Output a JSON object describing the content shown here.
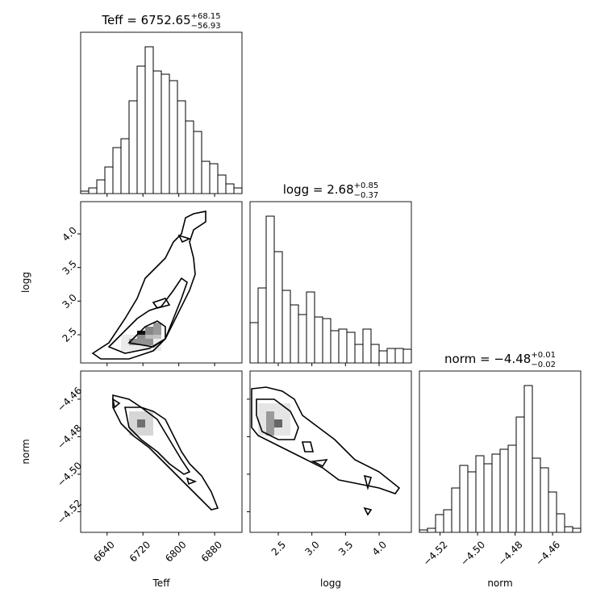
{
  "chart_data": {
    "type": "corner",
    "hist_ylim": [
      0,
      200
    ],
    "parameters": [
      {
        "name": "Teff",
        "title": "Teff = 6752.65",
        "upper": "+68.15",
        "lower": "−56.93",
        "xlim": [
          6581,
          6941
        ],
        "xticks": [
          6640,
          6720,
          6800,
          6880
        ],
        "bins": [
          6581,
          6599,
          6617,
          6635,
          6653,
          6671,
          6689,
          6707,
          6725,
          6743,
          6761,
          6779,
          6797,
          6815,
          6833,
          6851,
          6869,
          6887,
          6905,
          6923,
          6941
        ],
        "counts": [
          3,
          7,
          17,
          33,
          57,
          68,
          115,
          158,
          182,
          152,
          148,
          140,
          115,
          90,
          77,
          40,
          37,
          23,
          12,
          7
        ]
      },
      {
        "name": "logg",
        "title": "logg = 2.68",
        "upper": "+0.85",
        "lower": "−0.37",
        "xlim": [
          2.08,
          4.48
        ],
        "xticks": [
          2.5,
          {
            "value": 3,
            "label": "3.0"
          },
          3.5,
          {
            "value": 4,
            "label": "4.0"
          }
        ],
        "bins": [
          2.08,
          2.2,
          2.32,
          2.44,
          2.56,
          2.68,
          2.8,
          2.92,
          3.04,
          3.16,
          3.28,
          3.4,
          3.52,
          3.64,
          3.76,
          3.88,
          4.0,
          4.12,
          4.24,
          4.36,
          4.48
        ],
        "counts": [
          50,
          93,
          182,
          138,
          90,
          72,
          60,
          88,
          57,
          55,
          40,
          42,
          38,
          23,
          42,
          23,
          15,
          18,
          18,
          17
        ]
      },
      {
        "name": "norm",
        "title": "norm = −4.48",
        "upper": "+0.01",
        "lower": "−0.02",
        "xlim": [
          -4.531,
          -4.445
        ],
        "xticks": [
          {
            "value": -4.52,
            "label": "−4.52"
          },
          {
            "value": -4.5,
            "label": "−4.50"
          },
          {
            "value": -4.48,
            "label": "−4.48"
          },
          {
            "value": -4.46,
            "label": "−4.46"
          }
        ],
        "bins": [
          -4.531,
          -4.5267,
          -4.5224,
          -4.5181,
          -4.5138,
          -4.5095,
          -4.5052,
          -4.5009,
          -4.4966,
          -4.4923,
          -4.488,
          -4.4837,
          -4.4794,
          -4.4751,
          -4.4708,
          -4.4665,
          -4.4622,
          -4.4579,
          -4.4536,
          -4.4493,
          -4.445
        ],
        "counts": [
          3,
          5,
          22,
          28,
          55,
          83,
          75,
          95,
          85,
          97,
          103,
          108,
          143,
          182,
          92,
          80,
          50,
          23,
          7,
          5
        ]
      }
    ]
  }
}
